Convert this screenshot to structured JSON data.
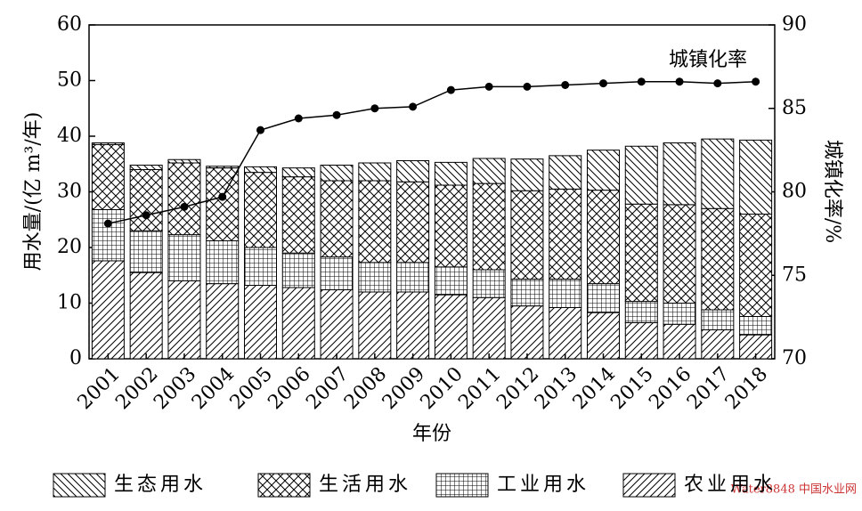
{
  "chart_data": {
    "type": "bar",
    "stacked": true,
    "categories": [
      "2001",
      "2002",
      "2003",
      "2004",
      "2005",
      "2006",
      "2007",
      "2008",
      "2009",
      "2010",
      "2011",
      "2012",
      "2013",
      "2014",
      "2015",
      "2016",
      "2017",
      "2018"
    ],
    "series": [
      {
        "name": "农业用水",
        "color": "#000000",
        "hatch": "slash",
        "values": [
          17.6,
          15.5,
          14,
          13.5,
          13.2,
          12.8,
          12.4,
          12,
          12,
          11.5,
          11,
          9.5,
          9.2,
          8.3,
          6.5,
          6.2,
          5.2,
          4.3
        ]
      },
      {
        "name": "工业用水",
        "color": "#000000",
        "hatch": "grid",
        "values": [
          9.2,
          7.5,
          8.3,
          7.7,
          6.8,
          6.2,
          5.9,
          5.3,
          5.3,
          5,
          5,
          4.8,
          5.1,
          5.2,
          3.8,
          3.8,
          3.6,
          3.3
        ]
      },
      {
        "name": "生活用水",
        "color": "#000000",
        "hatch": "cross",
        "values": [
          11.7,
          11,
          12.9,
          13.1,
          13.5,
          13.7,
          13.7,
          14.7,
          14.5,
          14.7,
          15.5,
          15.9,
          16.2,
          16.8,
          17.5,
          17.7,
          18.2,
          18.4
        ]
      },
      {
        "name": "生态用水",
        "color": "#000000",
        "hatch": "backslash",
        "values": [
          0.3,
          0.8,
          0.6,
          0.3,
          1,
          1.6,
          2.8,
          3.2,
          3.8,
          4.1,
          4.5,
          5.7,
          6,
          7.2,
          10.4,
          11.1,
          12.5,
          13.3
        ]
      }
    ],
    "line": {
      "type": "line",
      "name": "城镇化率",
      "axis": "y2",
      "color": "#000000",
      "values": [
        78.1,
        78.6,
        79.1,
        79.7,
        83.7,
        84.4,
        84.6,
        85,
        85.1,
        86.1,
        86.3,
        86.3,
        86.4,
        86.5,
        86.6,
        86.6,
        86.5,
        86.6
      ]
    },
    "ylim": [
      0,
      60
    ],
    "yticks": [
      0,
      10,
      20,
      30,
      40,
      50,
      60
    ],
    "y2lim": [
      70,
      90
    ],
    "y2ticks": [
      70,
      75,
      80,
      85,
      90
    ],
    "ylabel": "用水量/(亿 m³/年)",
    "y2label": "城镇化率/%",
    "xlabel": "年份",
    "legend": "bottom",
    "watermark": "Water8848 中国水业网"
  }
}
